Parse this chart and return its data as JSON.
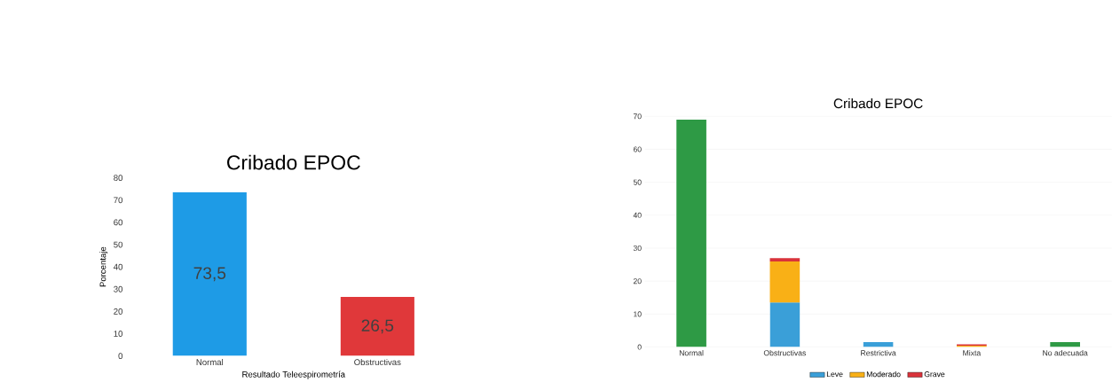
{
  "chart_data": [
    {
      "type": "bar",
      "title": "Cribado EPOC",
      "xlabel": "Resultado Teleespirometría",
      "ylabel": "Porcentaje",
      "categories": [
        "Normal",
        "Obstructivas"
      ],
      "values": [
        73.5,
        26.5
      ],
      "colors": [
        "#1e9be6",
        "#e0383a"
      ],
      "value_labels": [
        "73,5",
        "26,5"
      ],
      "ylim": [
        0,
        80
      ],
      "yticks": [
        0,
        10,
        20,
        30,
        40,
        50,
        60,
        70,
        80
      ]
    },
    {
      "type": "bar",
      "title": "Cribado EPOC",
      "stacked": true,
      "legend": "bottom",
      "grid": "y",
      "categories": [
        "Normal",
        "Obstructivas",
        "Restrictiva",
        "Mixta",
        "No adecuada"
      ],
      "ylim": [
        0,
        70
      ],
      "yticks": [
        0,
        10,
        20,
        30,
        40,
        50,
        60,
        70
      ],
      "series": [
        {
          "name": "Leve",
          "color": "#3a9fd8",
          "values": [
            null,
            13.5,
            1.5,
            null,
            null
          ]
        },
        {
          "name": "Moderado",
          "color": "#f9b016",
          "values": [
            null,
            12.5,
            null,
            0.4,
            null
          ]
        },
        {
          "name": "Grave",
          "color": "#d9323a",
          "values": [
            null,
            1,
            null,
            0.4,
            null
          ]
        },
        {
          "color": "#2e9a45",
          "values": [
            69,
            null,
            null,
            null,
            1.5
          ]
        }
      ]
    }
  ]
}
